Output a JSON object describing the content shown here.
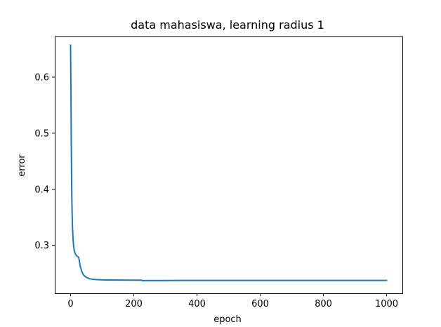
{
  "chart_data": {
    "type": "line",
    "title": "data mahasiswa, learning radius 1",
    "xlabel": "epoch",
    "ylabel": "error",
    "xlim": [
      -50,
      1050
    ],
    "ylim": [
      0.2145,
      0.6725
    ],
    "xticks": [
      0,
      200,
      400,
      600,
      800,
      1000
    ],
    "yticks": [
      0.3,
      0.4,
      0.5,
      0.6
    ],
    "xtick_labels": [
      "0",
      "200",
      "400",
      "600",
      "800",
      "1000"
    ],
    "ytick_labels": [
      "0.3",
      "0.4",
      "0.5",
      "0.6"
    ],
    "grid": false,
    "series": [
      {
        "color": "#1f77b4",
        "x": [
          0,
          1,
          2,
          3,
          4,
          5,
          6,
          8,
          10,
          12,
          15,
          18,
          22,
          25,
          27,
          30,
          35,
          40,
          45,
          50,
          60,
          70,
          80,
          100,
          120,
          150,
          200,
          225,
          226,
          250,
          300,
          400,
          500,
          600,
          700,
          800,
          900,
          1000
        ],
        "y": [
          0.657,
          0.59,
          0.5,
          0.43,
          0.385,
          0.355,
          0.333,
          0.31,
          0.297,
          0.29,
          0.285,
          0.282,
          0.28,
          0.279,
          0.275,
          0.264,
          0.254,
          0.248,
          0.245,
          0.243,
          0.2405,
          0.2395,
          0.239,
          0.2385,
          0.2383,
          0.2381,
          0.238,
          0.2379,
          0.2372,
          0.2373,
          0.2374,
          0.2375,
          0.2375,
          0.2375,
          0.2375,
          0.2375,
          0.2375,
          0.2375
        ]
      }
    ]
  }
}
